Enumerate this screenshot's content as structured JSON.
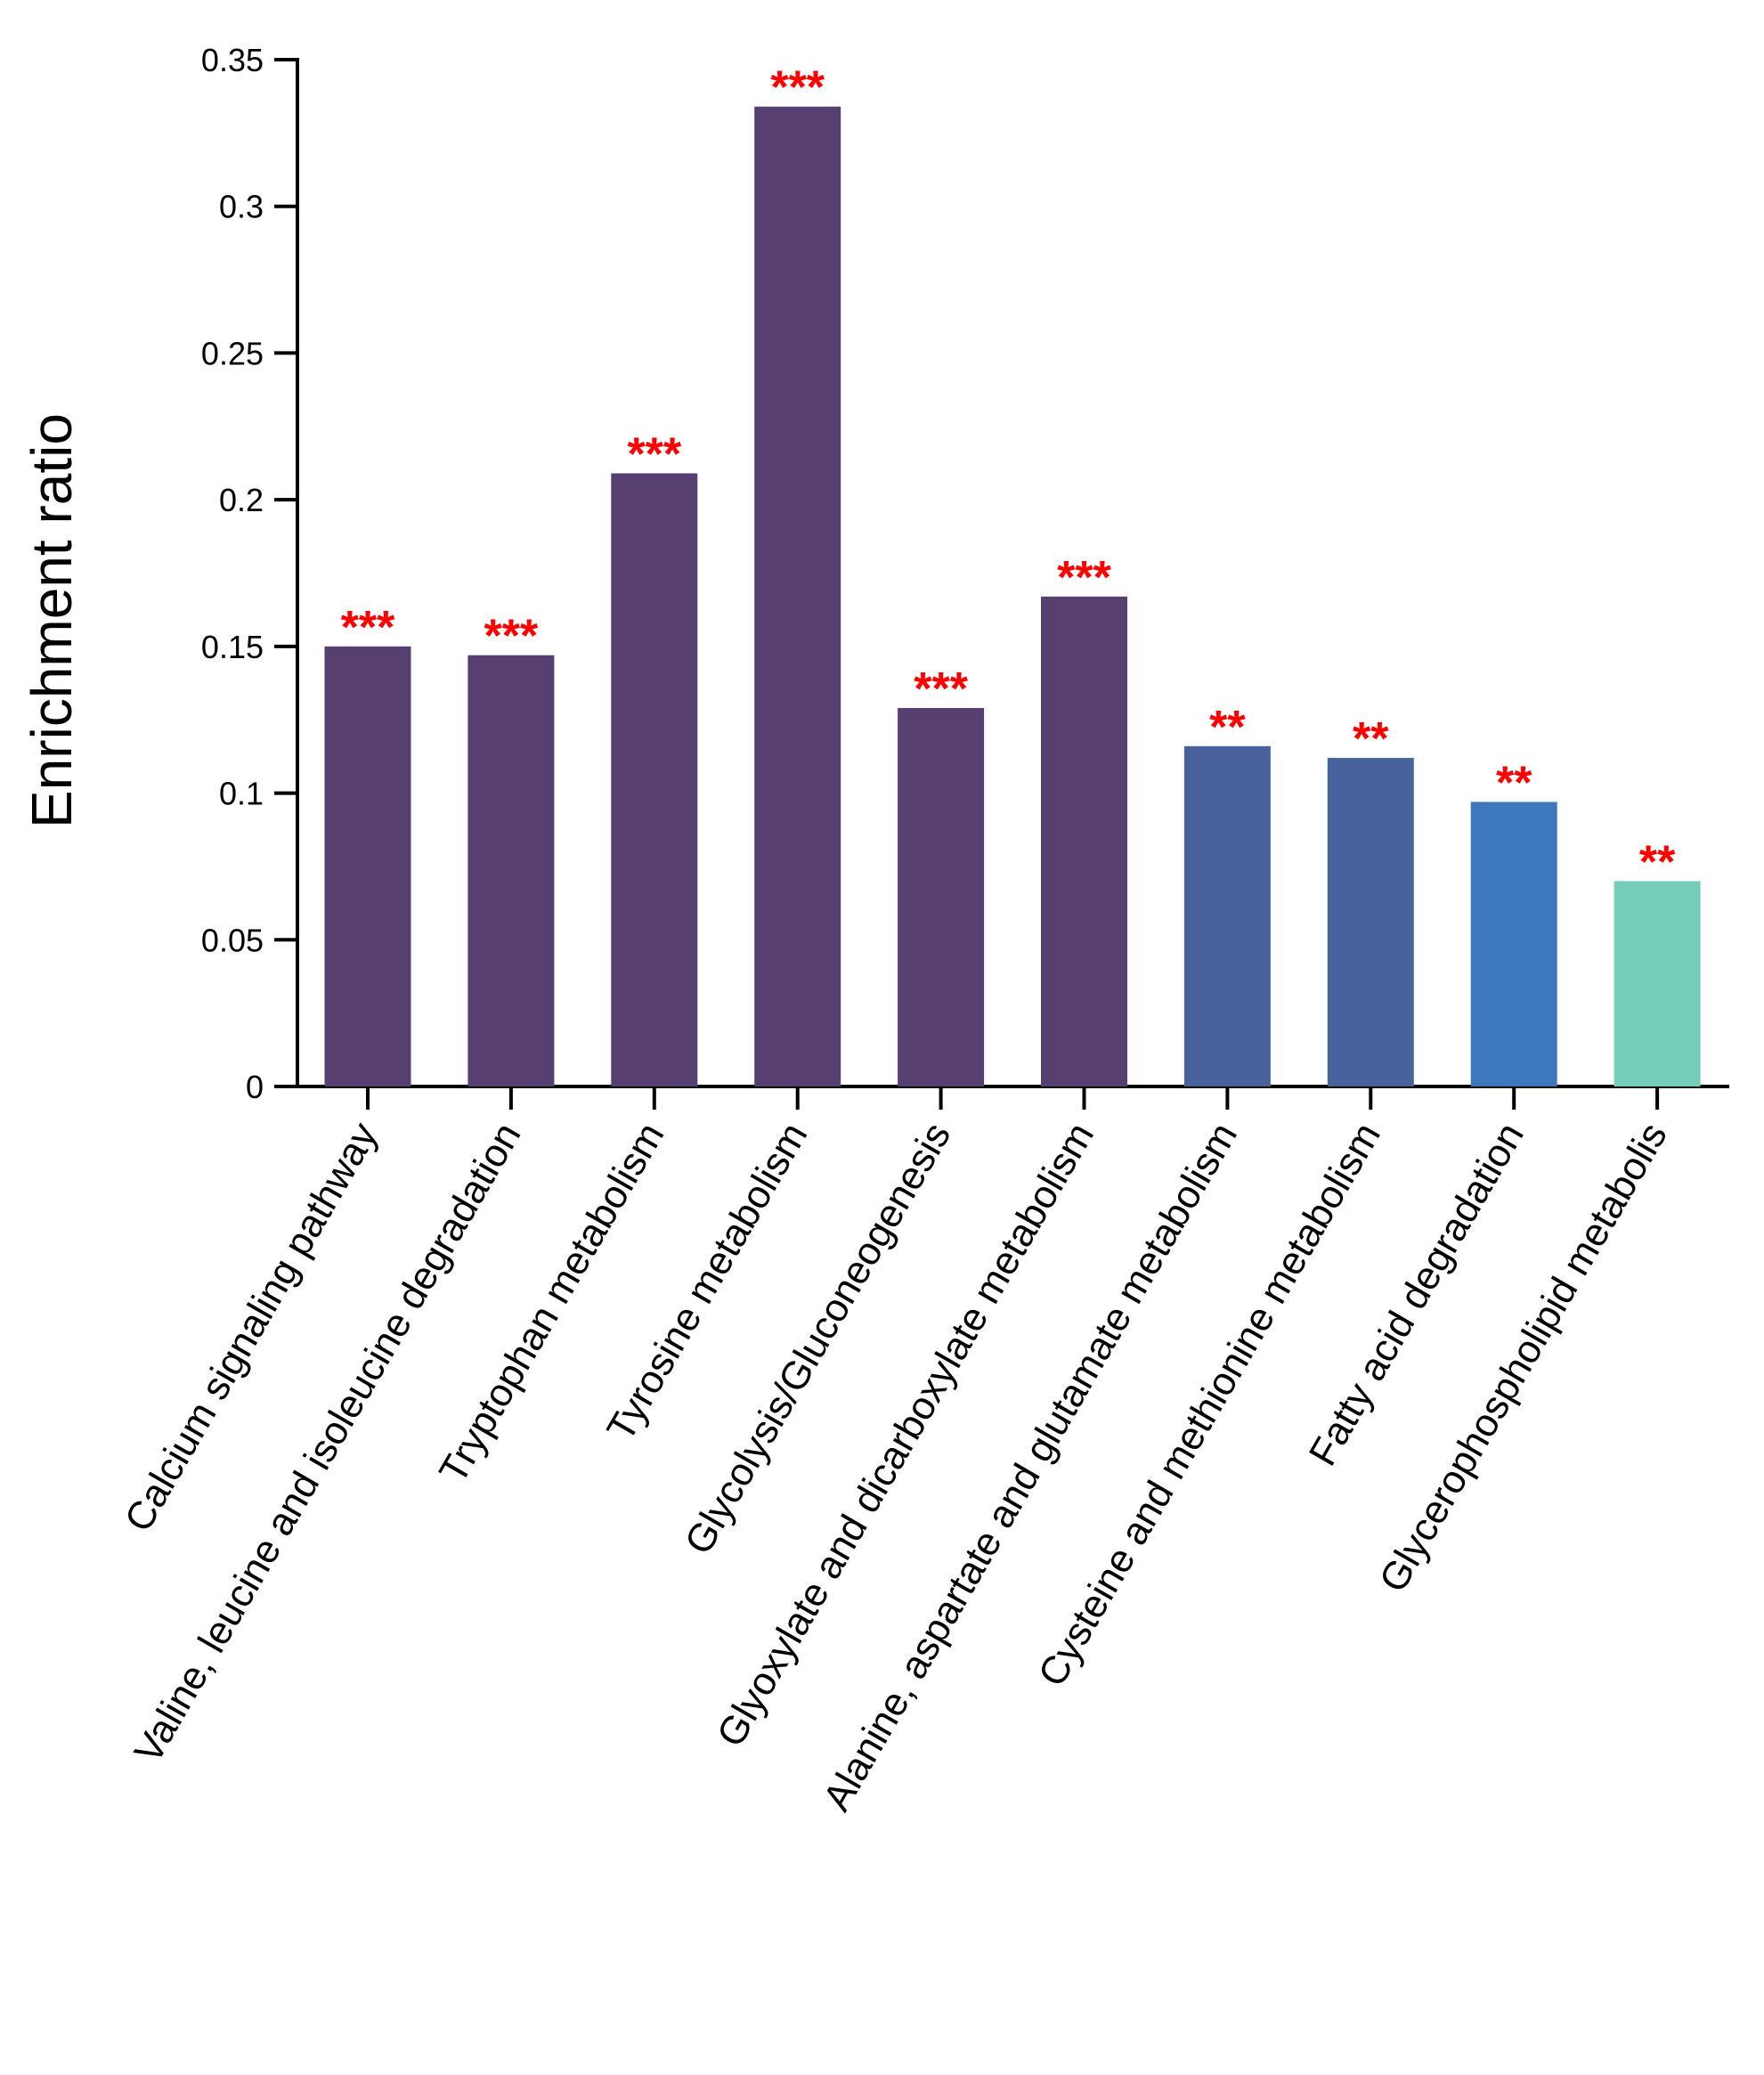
{
  "chart_data": {
    "type": "bar",
    "title": "",
    "xlabel": "",
    "ylabel": "Enrichment ratio",
    "ylim": [
      0,
      0.35
    ],
    "yticks": [
      0,
      0.05,
      0.1,
      0.15,
      0.2,
      0.25,
      0.3,
      0.35
    ],
    "ytick_labels": [
      "0",
      "0.05",
      "0.1",
      "0.15",
      "0.2",
      "0.25",
      "0.3",
      "0.35"
    ],
    "grid": false,
    "categories": [
      "Calcium signaling pathway",
      "Valine, leucine and isoleucine degradation",
      "Tryptophan metabolism",
      "Tyrosine metabolism",
      "Glycolysis/Gluconeogenesis",
      "Glyoxylate and dicarboxylate metabolism",
      "Alanine, aspartate and glutamate metabolism",
      "Cysteine and methionine metabolism",
      "Fatty acid degradation",
      "Glycerophospholipid metabolis"
    ],
    "values": [
      0.15,
      0.147,
      0.209,
      0.334,
      0.129,
      0.167,
      0.116,
      0.112,
      0.097,
      0.07
    ],
    "significance": [
      "***",
      "***",
      "***",
      "***",
      "***",
      "***",
      "**",
      "**",
      "**",
      "**"
    ],
    "bar_colors": [
      "#563F71",
      "#563F71",
      "#563F71",
      "#563F71",
      "#563F71",
      "#563F71",
      "#48639C",
      "#48639C",
      "#3D78BC",
      "#73CDB8"
    ],
    "significance_color": "#FF0000",
    "axis_color": "#000000"
  }
}
